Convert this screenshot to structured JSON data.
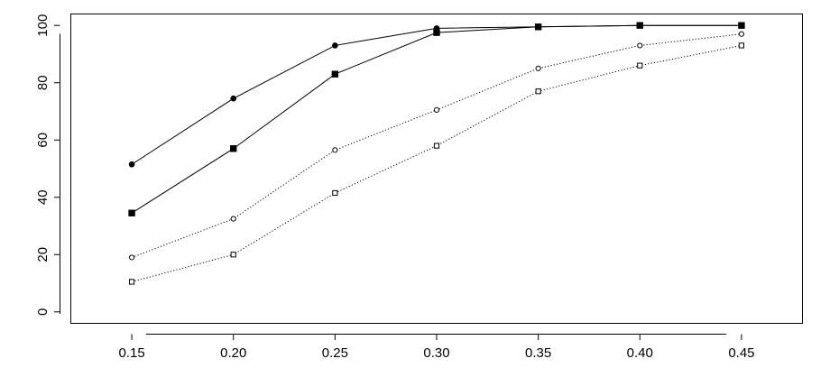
{
  "chart_data": {
    "type": "line",
    "title": "",
    "xlabel": "",
    "ylabel": "",
    "x": [
      0.15,
      0.2,
      0.25,
      0.3,
      0.35,
      0.4,
      0.45
    ],
    "x_tick_labels": [
      "0.15",
      "0.20",
      "0.25",
      "0.30",
      "0.35",
      "0.40",
      "0.45"
    ],
    "y_ticks": [
      0,
      20,
      40,
      60,
      80,
      100
    ],
    "y_tick_labels": [
      "0",
      "20",
      "40",
      "60",
      "80",
      "100"
    ],
    "xlim": [
      0.12,
      0.48
    ],
    "ylim": [
      -4,
      104
    ],
    "grid": false,
    "legend": "none",
    "series": [
      {
        "marker": "filled-circle",
        "line": "solid",
        "values": [
          51.5,
          74.5,
          93,
          99,
          99.5,
          100,
          100
        ]
      },
      {
        "marker": "filled-square",
        "line": "solid",
        "values": [
          34.5,
          57,
          83,
          97.5,
          99.5,
          100,
          100
        ]
      },
      {
        "marker": "open-circle",
        "line": "dotted",
        "values": [
          19,
          32.5,
          56.5,
          70.5,
          85,
          93,
          97
        ]
      },
      {
        "marker": "open-square",
        "line": "dotted",
        "values": [
          10.5,
          20,
          41.5,
          58,
          77,
          86,
          93
        ]
      }
    ]
  }
}
